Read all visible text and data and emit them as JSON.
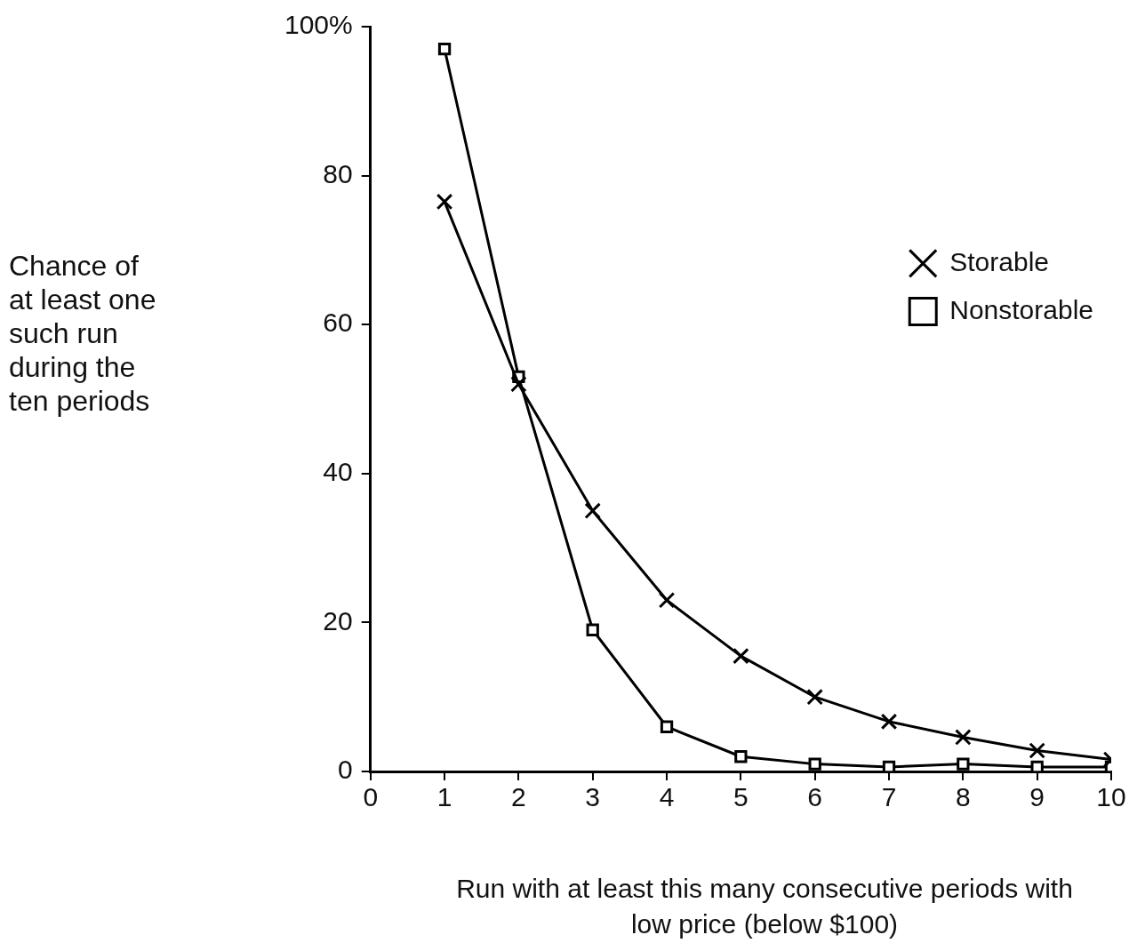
{
  "chart_data": {
    "type": "line",
    "xlabel": "Run with at least this many consecutive periods with low price  (below $100)",
    "ylabel": "Chance of at least one such run during the ten periods",
    "x": [
      1,
      2,
      3,
      4,
      5,
      6,
      7,
      8,
      9,
      10
    ],
    "series": [
      {
        "name": "Nonstorable",
        "color": "#000000",
        "marker": "square",
        "values": [
          97,
          53,
          19,
          6,
          2,
          1,
          0.6,
          1,
          0.6,
          0.6
        ]
      },
      {
        "name": "Storable",
        "color": "#000000",
        "marker": "cross",
        "values": [
          76.5,
          52,
          35,
          23,
          15.5,
          10,
          6.7,
          4.6,
          2.8,
          1.6
        ]
      }
    ],
    "xlim": [
      0,
      10
    ],
    "xticks": [
      0,
      1,
      2,
      3,
      4,
      5,
      6,
      7,
      8,
      9,
      10
    ],
    "ylim": [
      0,
      100
    ],
    "yticks": [
      0,
      20,
      40,
      60,
      80,
      {
        "value": 100,
        "label": "100%"
      }
    ],
    "grid": false,
    "legend": "top right",
    "line_style": "solid"
  }
}
